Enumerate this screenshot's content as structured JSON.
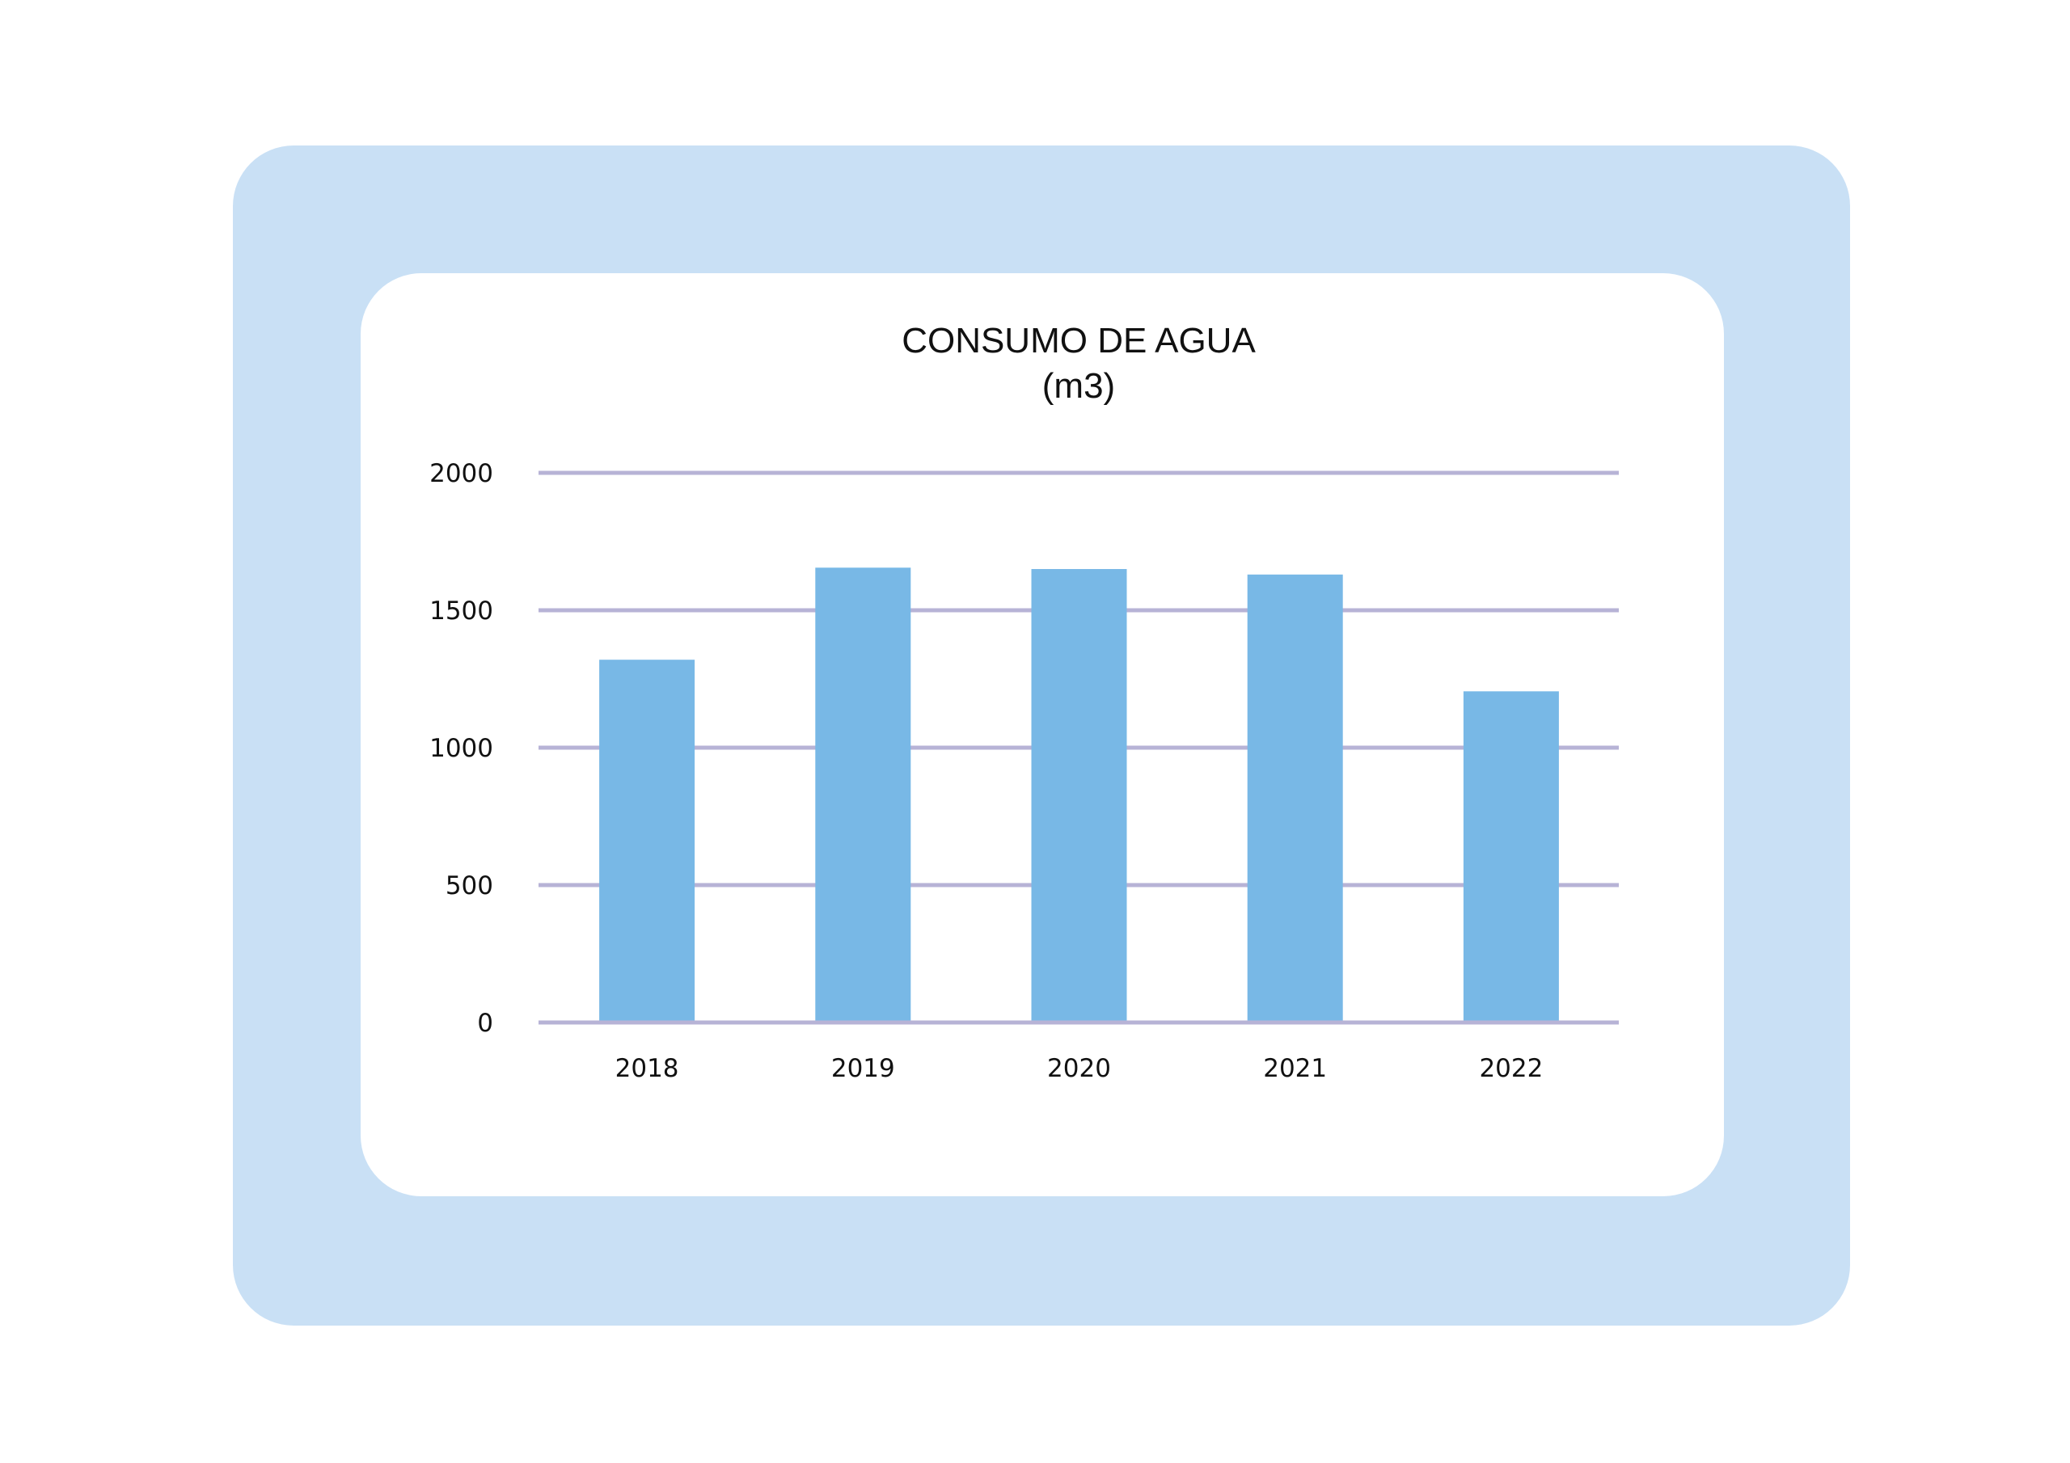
{
  "colors": {
    "frame": "#c9e0f5",
    "card": "#ffffff",
    "bar": "#78b8e6",
    "grid": "#b7b3d6",
    "text": "#111111"
  },
  "chart_data": {
    "type": "bar",
    "title": "CONSUMO DE AGUA",
    "subtitle": "(m3)",
    "categories": [
      "2018",
      "2019",
      "2020",
      "2021",
      "2022"
    ],
    "values": [
      1320,
      1655,
      1650,
      1630,
      1205
    ],
    "ylim": [
      0,
      2000
    ],
    "yticks": [
      0,
      500,
      1000,
      1500,
      2000
    ],
    "grid": true,
    "legend": "none"
  }
}
